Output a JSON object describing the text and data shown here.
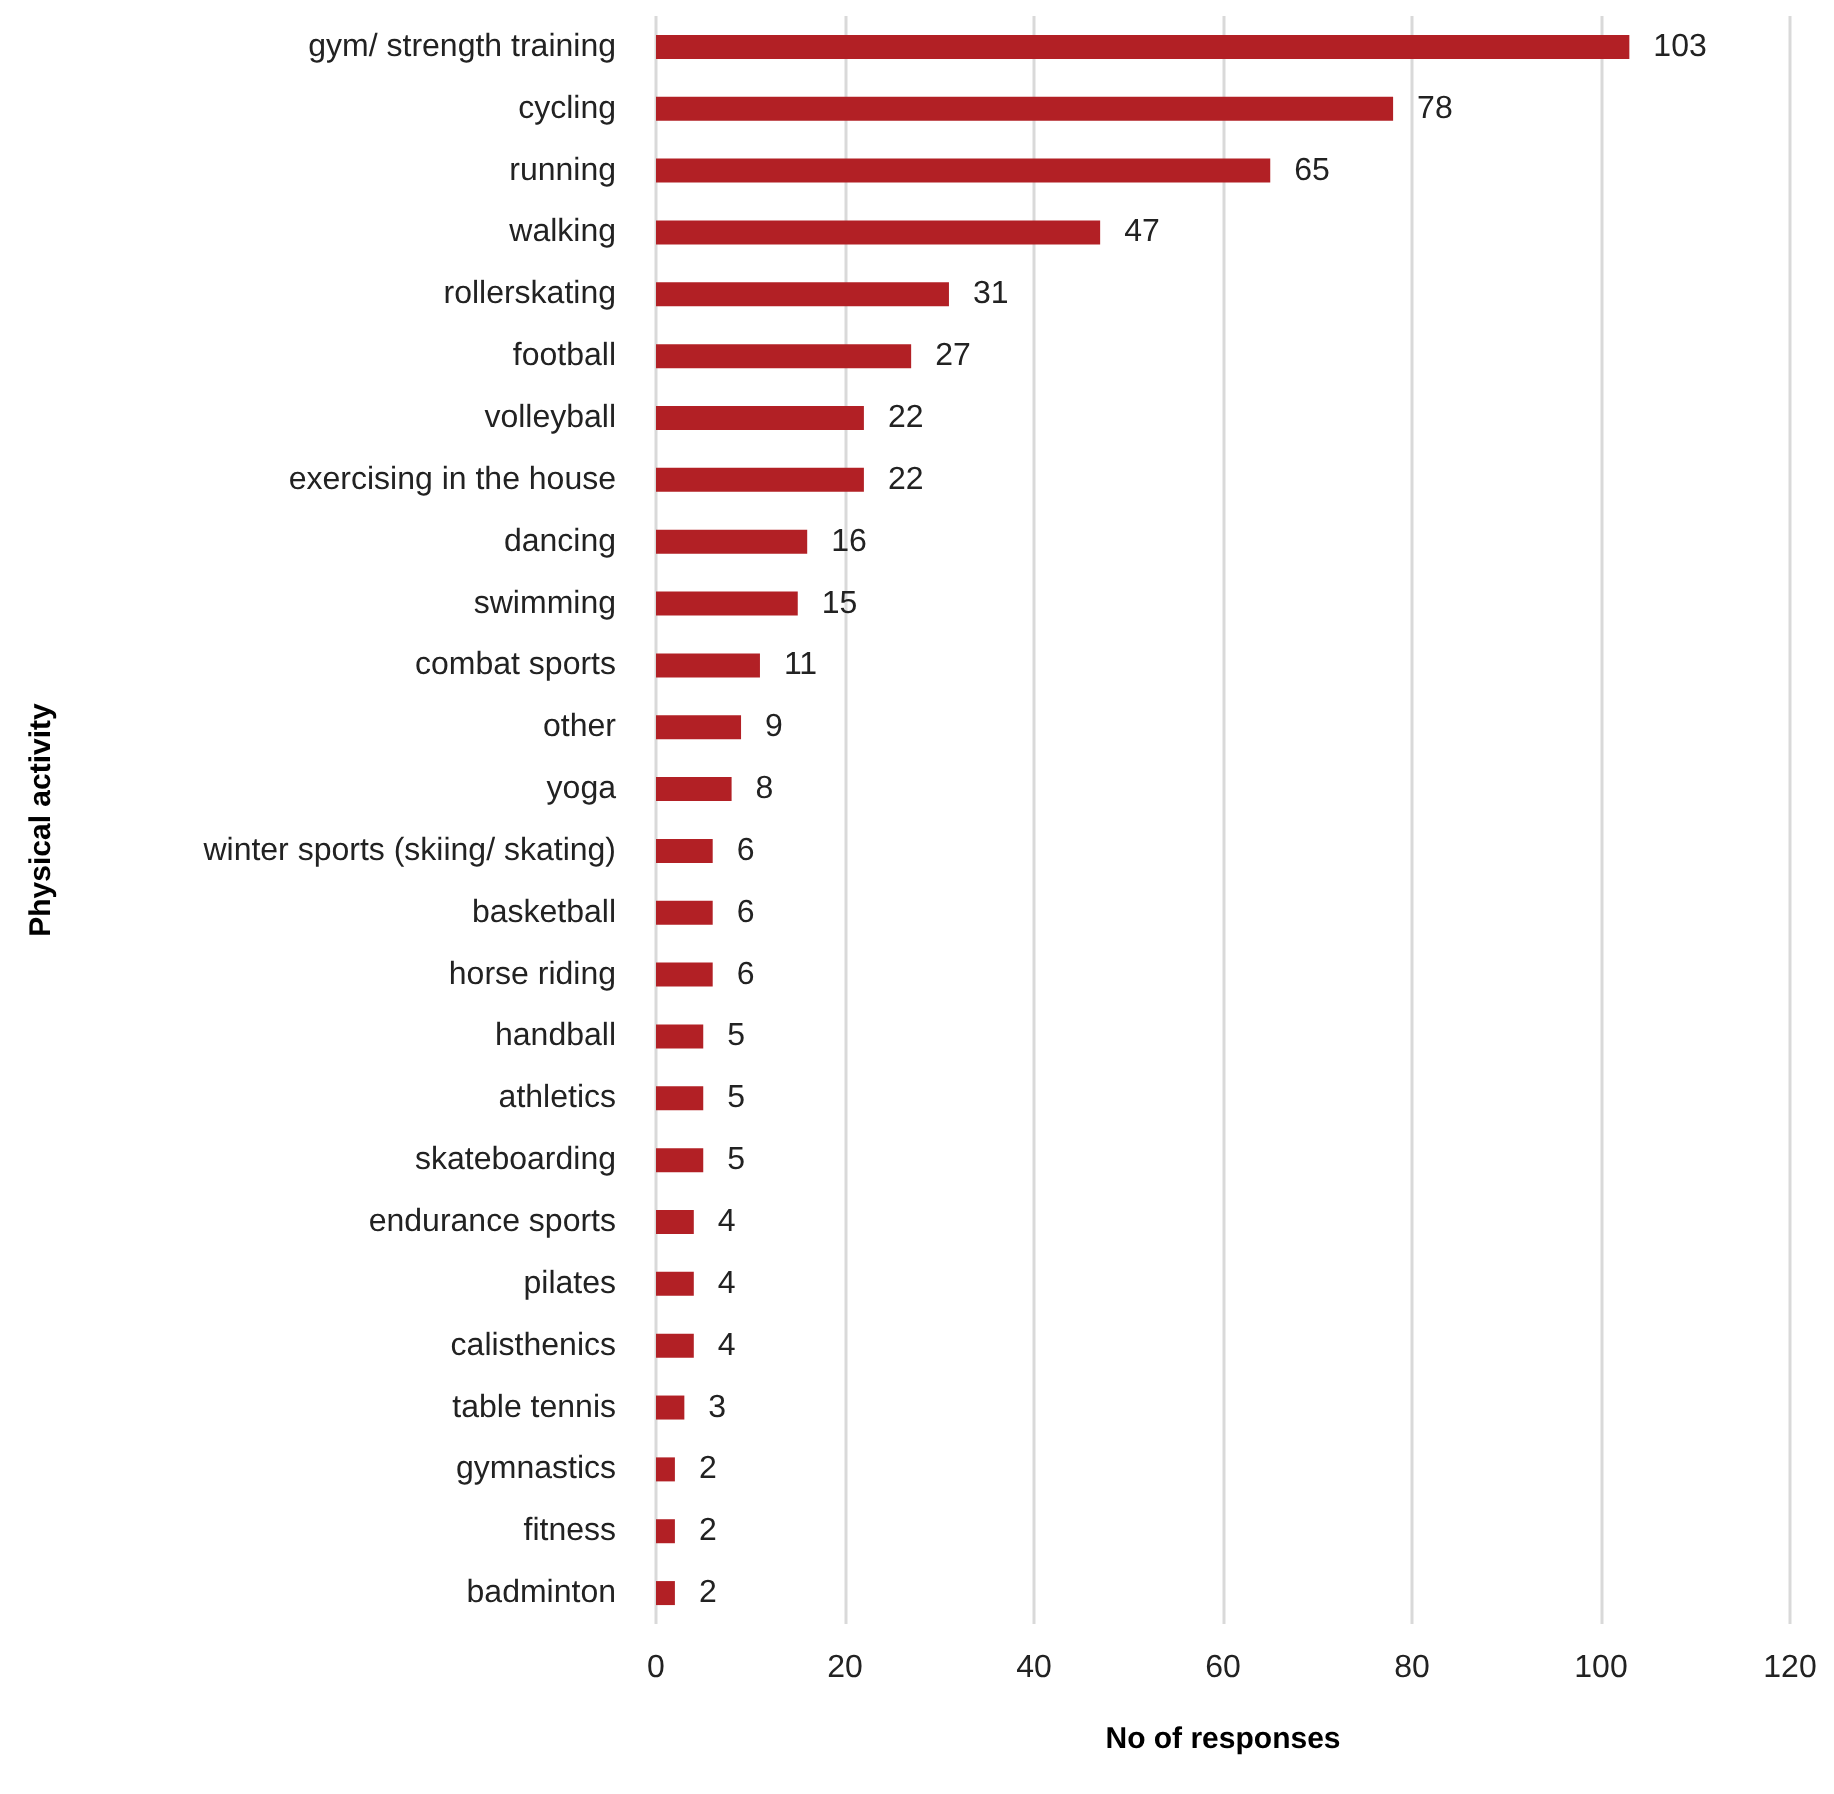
{
  "chart_data": {
    "type": "bar",
    "orientation": "horizontal",
    "xlabel": "No of responses",
    "ylabel": "Physical activity",
    "categories": [
      "gym/ strength training",
      "cycling",
      "running",
      "walking",
      "rollerskating",
      "football",
      "volleyball",
      "exercising in the house",
      "dancing",
      "swimming",
      "combat sports",
      "other",
      "yoga",
      "winter sports (skiing/ skating)",
      "basketball",
      "horse riding",
      "handball",
      "athletics",
      "skateboarding",
      "endurance sports",
      "pilates",
      "calisthenics",
      "table tennis",
      "gymnastics",
      "fitness",
      "badminton"
    ],
    "values": [
      103,
      78,
      65,
      47,
      31,
      27,
      22,
      22,
      16,
      15,
      11,
      9,
      8,
      6,
      6,
      6,
      5,
      5,
      5,
      4,
      4,
      4,
      3,
      2,
      2,
      2
    ],
    "color": "#b22025",
    "xlim": [
      0,
      120
    ],
    "xticks": [
      0,
      20,
      40,
      60,
      80,
      100,
      120
    ],
    "grid": "x",
    "data_labels": true
  }
}
